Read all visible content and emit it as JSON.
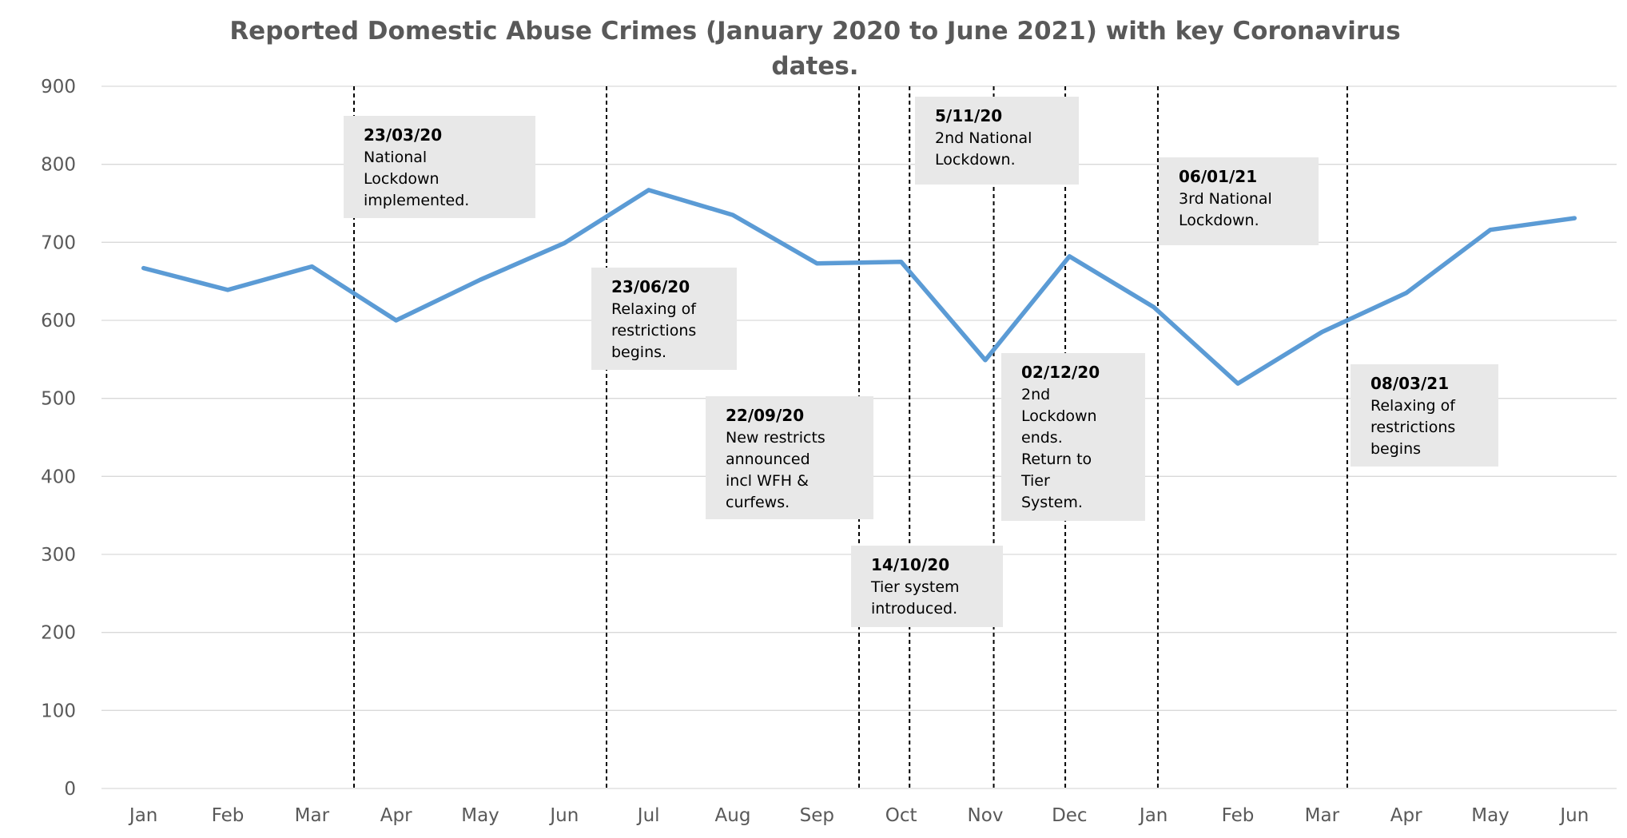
{
  "chart_data": {
    "type": "line",
    "title_lines": [
      "Reported Domestic Abuse Crimes (January 2020 to June 2021) with key Coronavirus",
      "dates."
    ],
    "categories": [
      "Jan",
      "Feb",
      "Mar",
      "Apr",
      "May",
      "Jun",
      "Jul",
      "Aug",
      "Sep",
      "Oct",
      "Nov",
      "Dec",
      "Jan",
      "Feb",
      "Mar",
      "Apr",
      "May",
      "Jun"
    ],
    "series": [
      {
        "values": [
          667,
          639,
          669,
          600,
          652,
          699,
          767,
          735,
          673,
          675,
          549,
          682,
          617,
          519,
          585,
          635,
          716,
          731
        ]
      }
    ],
    "ylim": [
      0,
      900
    ],
    "yticks": [
      0,
      100,
      200,
      300,
      400,
      500,
      600,
      700,
      800,
      900
    ],
    "grid": true,
    "legend": "none",
    "line_color": "#5b9bd5",
    "annotations": [
      {
        "date": "23/03/20",
        "text": [
          "National",
          "Lockdown",
          "implemented."
        ],
        "at_x": 2.5
      },
      {
        "date": "23/06/20",
        "text": [
          "Relaxing of",
          "restrictions",
          "begins."
        ],
        "at_x": 5.5
      },
      {
        "date": "22/09/20",
        "text": [
          "New restricts",
          "announced",
          "incl WFH &",
          "curfews."
        ],
        "at_x": 8.5
      },
      {
        "date": "14/10/20",
        "text": [
          "Tier system",
          "introduced."
        ],
        "at_x": 9.1
      },
      {
        "date": "5/11/20",
        "text": [
          "2nd National",
          "Lockdown."
        ],
        "at_x": 10.1
      },
      {
        "date": "02/12/20",
        "text": [
          "2nd",
          "Lockdown",
          "ends.",
          "Return to",
          "Tier",
          "System."
        ],
        "at_x": 10.95
      },
      {
        "date": "06/01/21",
        "text": [
          "3rd National",
          "Lockdown."
        ],
        "at_x": 12.05
      },
      {
        "date": "08/03/21",
        "text": [
          "Relaxing of",
          "restrictions",
          "begins"
        ],
        "at_x": 14.3
      }
    ]
  }
}
